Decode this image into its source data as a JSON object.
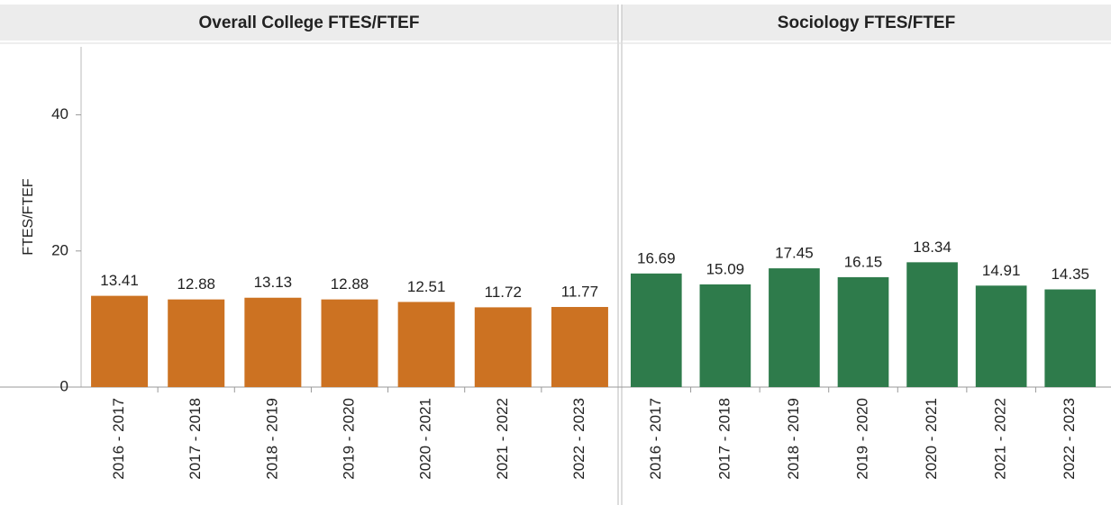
{
  "chart_data": [
    {
      "type": "bar",
      "title": "Overall College FTES/FTEF",
      "ylabel": "FTES/FTEF",
      "categories": [
        "2016 - 2017",
        "2017 - 2018",
        "2018 - 2019",
        "2019 - 2020",
        "2020 - 2021",
        "2021 - 2022",
        "2022 - 2023"
      ],
      "values": [
        13.41,
        12.88,
        13.13,
        12.88,
        12.51,
        11.72,
        11.77
      ],
      "color": "#cc7222",
      "ylim": [
        0,
        50
      ],
      "yticks": [
        0,
        20,
        40
      ]
    },
    {
      "type": "bar",
      "title": "Sociology FTES/FTEF",
      "categories": [
        "2016 - 2017",
        "2017 - 2018",
        "2018 - 2019",
        "2019 - 2020",
        "2020 - 2021",
        "2021 - 2022",
        "2022 - 2023"
      ],
      "values": [
        16.69,
        15.09,
        17.45,
        16.15,
        18.34,
        14.91,
        14.35
      ],
      "color": "#2e7b4b",
      "ylim": [
        0,
        50
      ]
    }
  ]
}
